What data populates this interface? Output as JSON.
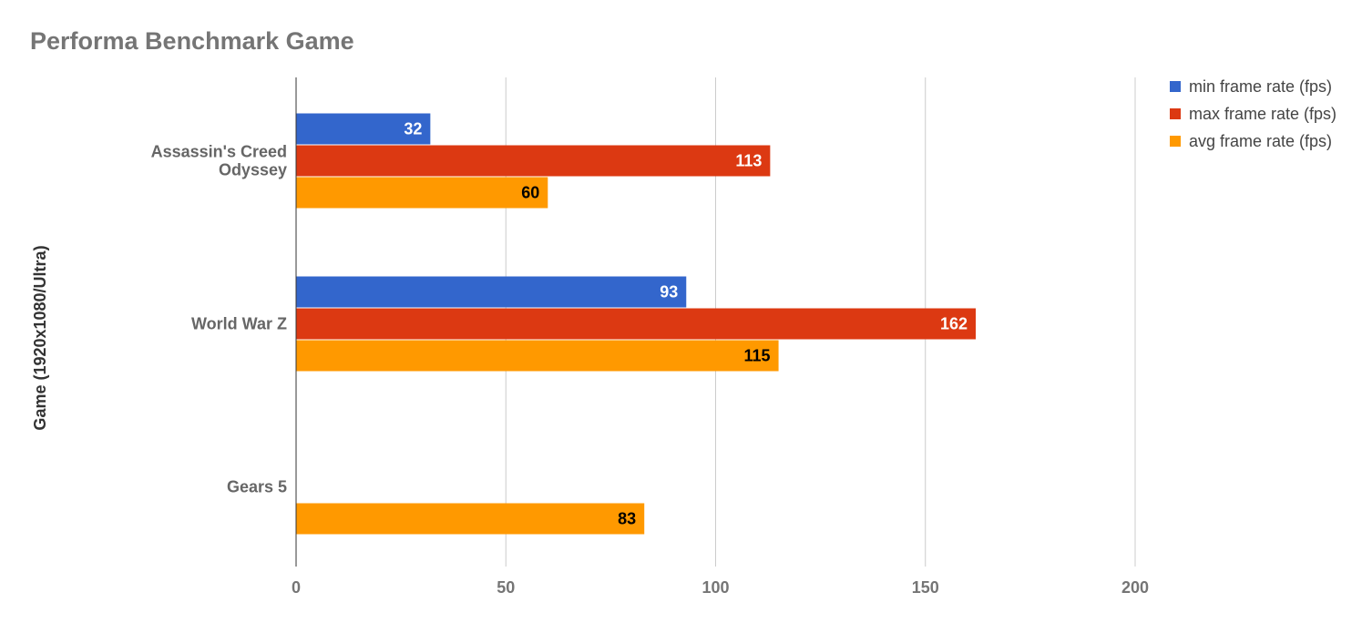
{
  "chart_data": {
    "type": "bar",
    "orientation": "horizontal",
    "title": "Performa Benchmark Game",
    "ylabel": "Game (1920x1080/Ultra)",
    "xlabel": "",
    "categories": [
      [
        "Assassin's Creed",
        "Odyssey"
      ],
      [
        "World War Z"
      ],
      [
        "Gears 5"
      ]
    ],
    "series": [
      {
        "name": "min frame rate (fps)",
        "color": "#3366cc",
        "labelColor": "#ffffff",
        "values": [
          32,
          93,
          null
        ]
      },
      {
        "name": "max frame rate (fps)",
        "color": "#dc3912",
        "labelColor": "#ffffff",
        "values": [
          113,
          162,
          null
        ]
      },
      {
        "name": "avg frame rate (fps)",
        "color": "#ff9900",
        "labelColor": "#000000",
        "values": [
          60,
          115,
          83
        ]
      }
    ],
    "xlim": [
      0,
      200
    ],
    "xticks": [
      0,
      50,
      100,
      150,
      200
    ],
    "grid": true,
    "legend_position": "top-right"
  }
}
